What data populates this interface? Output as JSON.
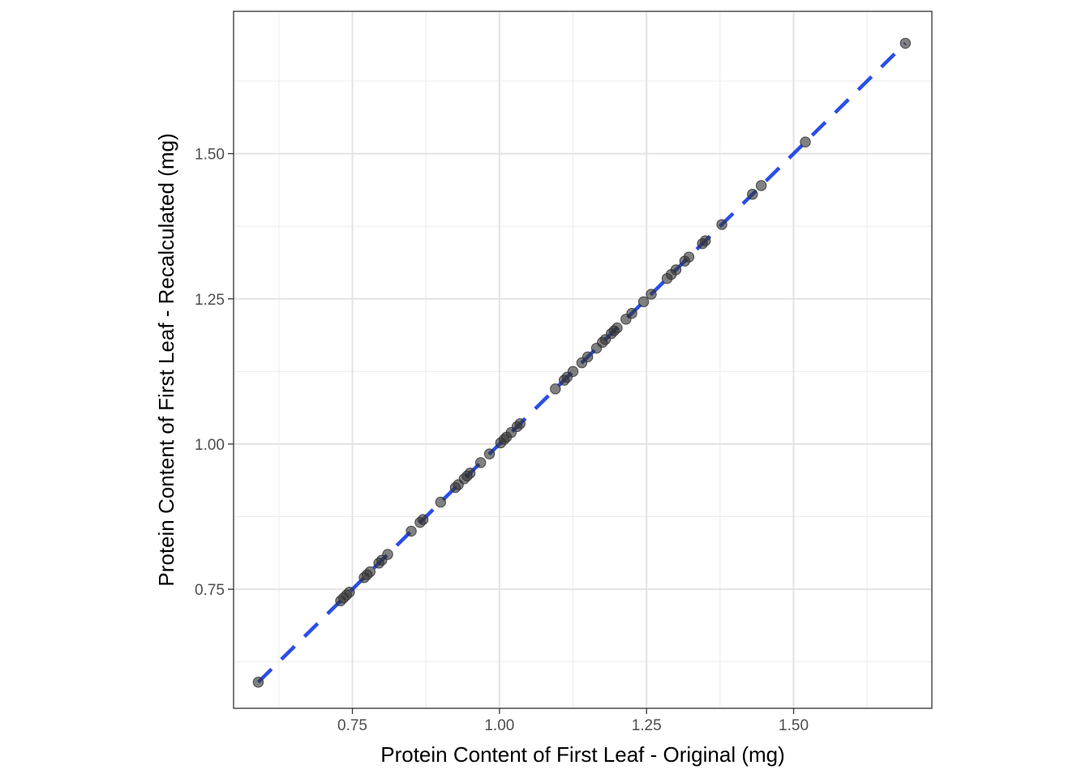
{
  "chart_data": {
    "type": "scatter",
    "xlabel": "Protein Content of First Leaf - Original (mg)",
    "ylabel": "Protein Content of First Leaf - Recalculated (mg)",
    "xlim": [
      0.548,
      1.735
    ],
    "ylim": [
      0.545,
      1.745
    ],
    "x_ticks": [
      0.75,
      1.0,
      1.25,
      1.5
    ],
    "x_tick_labels": [
      "0.75",
      "1.00",
      "1.25",
      "1.50"
    ],
    "y_ticks": [
      0.75,
      1.0,
      1.25,
      1.5
    ],
    "y_tick_labels": [
      "0.75",
      "1.00",
      "1.25",
      "1.50"
    ],
    "grid": true,
    "reference_line": {
      "slope": 1,
      "intercept": 0,
      "style": "dashed",
      "color": "#2a4ee8"
    },
    "point_color": "#333333",
    "points": [
      [
        0.59,
        0.59
      ],
      [
        0.73,
        0.73
      ],
      [
        0.735,
        0.735
      ],
      [
        0.74,
        0.74
      ],
      [
        0.745,
        0.745
      ],
      [
        0.77,
        0.77
      ],
      [
        0.775,
        0.775
      ],
      [
        0.78,
        0.78
      ],
      [
        0.795,
        0.795
      ],
      [
        0.8,
        0.8
      ],
      [
        0.81,
        0.81
      ],
      [
        0.85,
        0.85
      ],
      [
        0.865,
        0.865
      ],
      [
        0.87,
        0.87
      ],
      [
        0.9,
        0.9
      ],
      [
        0.925,
        0.925
      ],
      [
        0.93,
        0.93
      ],
      [
        0.94,
        0.94
      ],
      [
        0.945,
        0.945
      ],
      [
        0.95,
        0.95
      ],
      [
        0.968,
        0.968
      ],
      [
        0.983,
        0.983
      ],
      [
        1.002,
        1.002
      ],
      [
        1.008,
        1.008
      ],
      [
        1.012,
        1.012
      ],
      [
        1.02,
        1.02
      ],
      [
        1.03,
        1.03
      ],
      [
        1.035,
        1.035
      ],
      [
        1.095,
        1.095
      ],
      [
        1.11,
        1.11
      ],
      [
        1.115,
        1.115
      ],
      [
        1.125,
        1.125
      ],
      [
        1.14,
        1.14
      ],
      [
        1.15,
        1.15
      ],
      [
        1.165,
        1.165
      ],
      [
        1.175,
        1.175
      ],
      [
        1.18,
        1.18
      ],
      [
        1.19,
        1.19
      ],
      [
        1.195,
        1.195
      ],
      [
        1.2,
        1.2
      ],
      [
        1.215,
        1.215
      ],
      [
        1.225,
        1.225
      ],
      [
        1.245,
        1.245
      ],
      [
        1.258,
        1.258
      ],
      [
        1.285,
        1.285
      ],
      [
        1.292,
        1.292
      ],
      [
        1.3,
        1.3
      ],
      [
        1.315,
        1.315
      ],
      [
        1.322,
        1.322
      ],
      [
        1.345,
        1.345
      ],
      [
        1.35,
        1.35
      ],
      [
        1.378,
        1.378
      ],
      [
        1.43,
        1.43
      ],
      [
        1.445,
        1.445
      ],
      [
        1.52,
        1.52
      ],
      [
        1.69,
        1.69
      ]
    ]
  }
}
